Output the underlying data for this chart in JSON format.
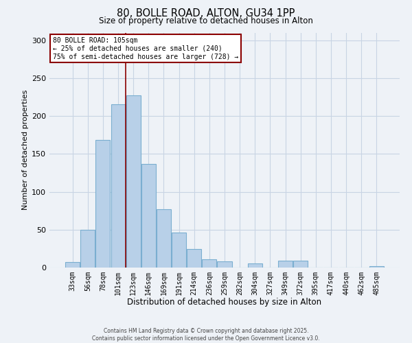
{
  "title1": "80, BOLLE ROAD, ALTON, GU34 1PP",
  "title2": "Size of property relative to detached houses in Alton",
  "xlabel": "Distribution of detached houses by size in Alton",
  "ylabel": "Number of detached properties",
  "bar_labels": [
    "33sqm",
    "56sqm",
    "78sqm",
    "101sqm",
    "123sqm",
    "146sqm",
    "169sqm",
    "191sqm",
    "214sqm",
    "236sqm",
    "259sqm",
    "282sqm",
    "304sqm",
    "327sqm",
    "349sqm",
    "372sqm",
    "395sqm",
    "417sqm",
    "440sqm",
    "462sqm",
    "485sqm"
  ],
  "bar_heights": [
    7,
    50,
    168,
    215,
    227,
    137,
    77,
    46,
    24,
    11,
    8,
    0,
    5,
    0,
    9,
    9,
    0,
    0,
    0,
    0,
    2
  ],
  "bar_color": "#b8d0e8",
  "bar_edge_color": "#7aaed0",
  "vline_x": 3.5,
  "vline_color": "#8b0000",
  "annotation_line1": "80 BOLLE ROAD: 105sqm",
  "annotation_line2": "← 25% of detached houses are smaller (240)",
  "annotation_line3": "75% of semi-detached houses are larger (728) →",
  "annotation_box_color": "#8b0000",
  "annotation_box_facecolor": "white",
  "ylim": [
    0,
    310
  ],
  "yticks": [
    0,
    50,
    100,
    150,
    200,
    250,
    300
  ],
  "footer1": "Contains HM Land Registry data © Crown copyright and database right 2025.",
  "footer2": "Contains public sector information licensed under the Open Government Licence v3.0.",
  "bg_color": "#eef2f7",
  "grid_color": "#c8d4e4"
}
